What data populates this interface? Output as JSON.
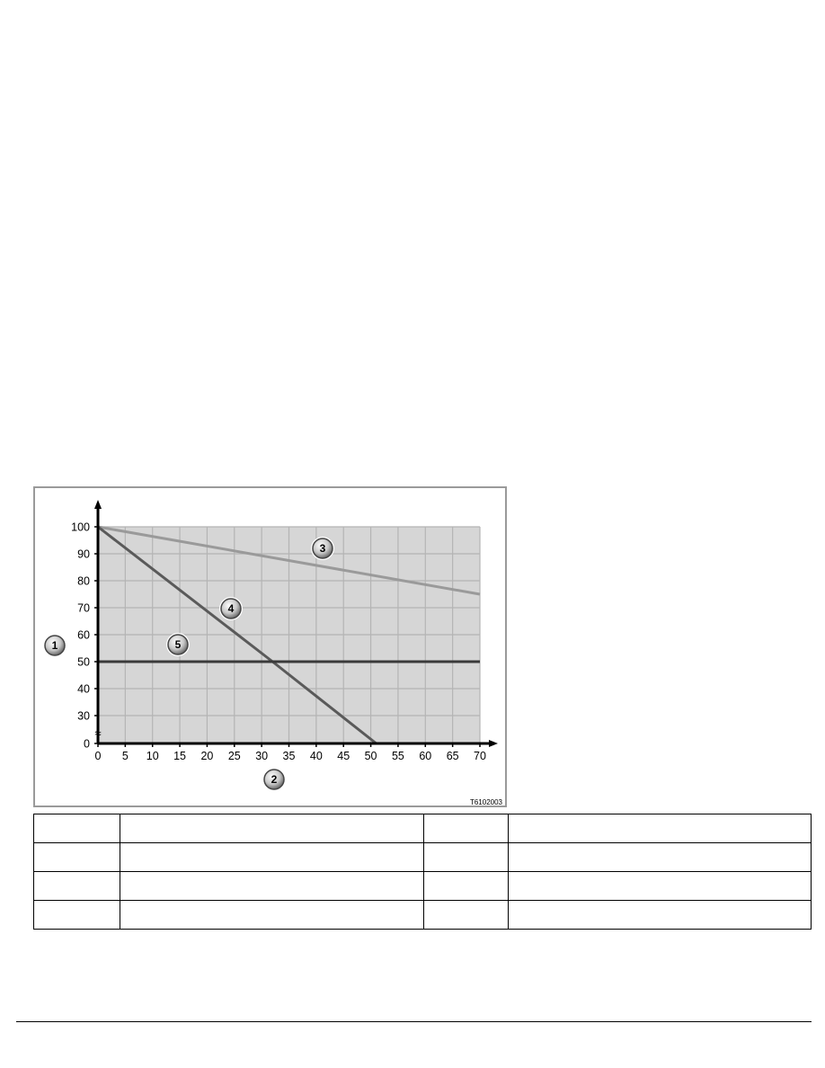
{
  "figure": {
    "reference_code": "T6102003",
    "callouts": [
      "1",
      "2",
      "3",
      "4",
      "5"
    ]
  },
  "chart_data": {
    "type": "line",
    "title": "",
    "xlabel": "",
    "ylabel": "",
    "xlim": [
      0,
      70
    ],
    "ylim": [
      0,
      100
    ],
    "y_axis_break": "between 0 and 30",
    "grid": true,
    "x_ticks": [
      "0",
      "5",
      "10",
      "15",
      "20",
      "25",
      "30",
      "35",
      "40",
      "45",
      "50",
      "55",
      "60",
      "65",
      "70"
    ],
    "y_ticks": [
      "0",
      "30",
      "40",
      "50",
      "60",
      "70",
      "80",
      "90",
      "100"
    ],
    "series": [
      {
        "callout": "3",
        "color": "#9a9a9a",
        "points": [
          [
            0,
            100
          ],
          [
            70,
            75
          ]
        ]
      },
      {
        "callout": "4",
        "color": "#5a5a5a",
        "points": [
          [
            0,
            100
          ],
          [
            32,
            50
          ],
          [
            51,
            0
          ]
        ]
      },
      {
        "callout": "5",
        "color": "#3a3a3a",
        "points": [
          [
            0,
            50
          ],
          [
            70,
            50
          ]
        ]
      }
    ],
    "plot_background": "#d6d6d6",
    "grid_color": "#b4b4b4"
  },
  "table": {
    "rows": [
      [
        "",
        "",
        "",
        ""
      ],
      [
        "",
        "",
        "",
        ""
      ],
      [
        "",
        "",
        "",
        ""
      ],
      [
        "",
        "",
        "",
        ""
      ]
    ]
  }
}
